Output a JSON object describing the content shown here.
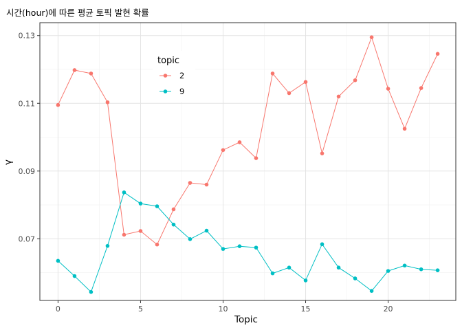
{
  "chart_data": {
    "type": "line",
    "title": "시간(hour)에 따른 평균 토픽 발현 확률",
    "xlabel": "Topic",
    "ylabel": "γ",
    "xlim": [
      -1.1,
      24.1
    ],
    "ylim": [
      0.0518,
      0.1338
    ],
    "x_ticks": [
      0,
      5,
      10,
      15,
      20
    ],
    "y_ticks": [
      0.07,
      0.09,
      0.11,
      0.13
    ],
    "y_tick_labels": [
      "0.07",
      "0.09",
      "0.11",
      "0.13"
    ],
    "x_minor_ticks": [
      2.5,
      7.5,
      12.5,
      17.5,
      22.5
    ],
    "y_minor_ticks": [
      0.06,
      0.08,
      0.1,
      0.12
    ],
    "grid": true,
    "legend": {
      "title": "topic",
      "placement": "top-center"
    },
    "x": [
      0,
      1,
      2,
      3,
      4,
      5,
      6,
      7,
      8,
      9,
      10,
      11,
      12,
      13,
      14,
      15,
      16,
      17,
      18,
      19,
      20,
      21,
      22,
      23
    ],
    "series": [
      {
        "name": "2",
        "color": "#F8766D",
        "values": [
          0.1095,
          0.1198,
          0.1188,
          0.1103,
          0.0712,
          0.0723,
          0.0683,
          0.0787,
          0.0865,
          0.086,
          0.0962,
          0.0985,
          0.0938,
          0.1188,
          0.113,
          0.1163,
          0.0952,
          0.112,
          0.1168,
          0.1295,
          0.1143,
          0.1025,
          0.1145,
          0.1246
        ]
      },
      {
        "name": "9",
        "color": "#00BFC4",
        "values": [
          0.0635,
          0.059,
          0.0543,
          0.0679,
          0.0837,
          0.0804,
          0.0796,
          0.0742,
          0.0699,
          0.0724,
          0.067,
          0.0678,
          0.0674,
          0.0598,
          0.0615,
          0.0577,
          0.0684,
          0.0615,
          0.0583,
          0.0546,
          0.0605,
          0.0621,
          0.061,
          0.0607
        ]
      }
    ]
  }
}
